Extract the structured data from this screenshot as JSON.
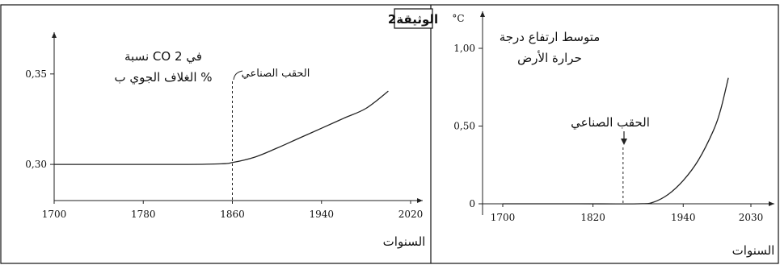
{
  "document_label": "الوثيقة2",
  "chart_data": [
    {
      "type": "line",
      "title": "نسبة CO 2 في الغلاف الجوي ب %",
      "title_lines": [
        "نسبة CO 2 في",
        "الغلاف الجوي ب %"
      ],
      "xlabel": "السنوات",
      "ylabel": "",
      "x_ticks": [
        1700,
        1780,
        1860,
        1940,
        2020
      ],
      "y_ticks": [
        {
          "value": 0.3,
          "label": "0,30"
        },
        {
          "value": 0.35,
          "label": "0,35"
        }
      ],
      "xlim": [
        1700,
        2020
      ],
      "ylim": [
        0.28,
        0.39
      ],
      "annotation": {
        "text": "الحقب الصناعي",
        "x": 1860
      },
      "grid": false,
      "series": [
        {
          "x": [
            1700,
            1740,
            1780,
            1820,
            1850,
            1860,
            1880,
            1900,
            1920,
            1940,
            1960,
            1980,
            2000
          ],
          "y": [
            0.3,
            0.3,
            0.3,
            0.3,
            0.3003,
            0.301,
            0.304,
            0.309,
            0.3145,
            0.32,
            0.3255,
            0.331,
            0.3405
          ]
        }
      ]
    },
    {
      "type": "line",
      "title": "متوسط ارتفاع درجة حرارة الأرض",
      "title_lines": [
        "متوسط ارتفاع درجة",
        "حرارة الأرض"
      ],
      "xlabel": "السنوات",
      "ylabel": "°C",
      "x_ticks": [
        1700,
        1820,
        1940,
        2030
      ],
      "y_ticks": [
        {
          "value": 0,
          "label": "0"
        },
        {
          "value": 0.5,
          "label": "0,50"
        },
        {
          "value": 1.0,
          "label": "1,00"
        }
      ],
      "xlim": [
        1700,
        2030
      ],
      "ylim": [
        0,
        1.0
      ],
      "annotation": {
        "text": "الحقب الصناعي",
        "x": 1860
      },
      "grid": false,
      "series": [
        {
          "x": [
            1700,
            1800,
            1880,
            1900,
            1920,
            1940,
            1960,
            1980,
            1990,
            2000
          ],
          "y": [
            0,
            0,
            0,
            0.01,
            0.06,
            0.15,
            0.28,
            0.47,
            0.61,
            0.81
          ]
        }
      ]
    }
  ]
}
